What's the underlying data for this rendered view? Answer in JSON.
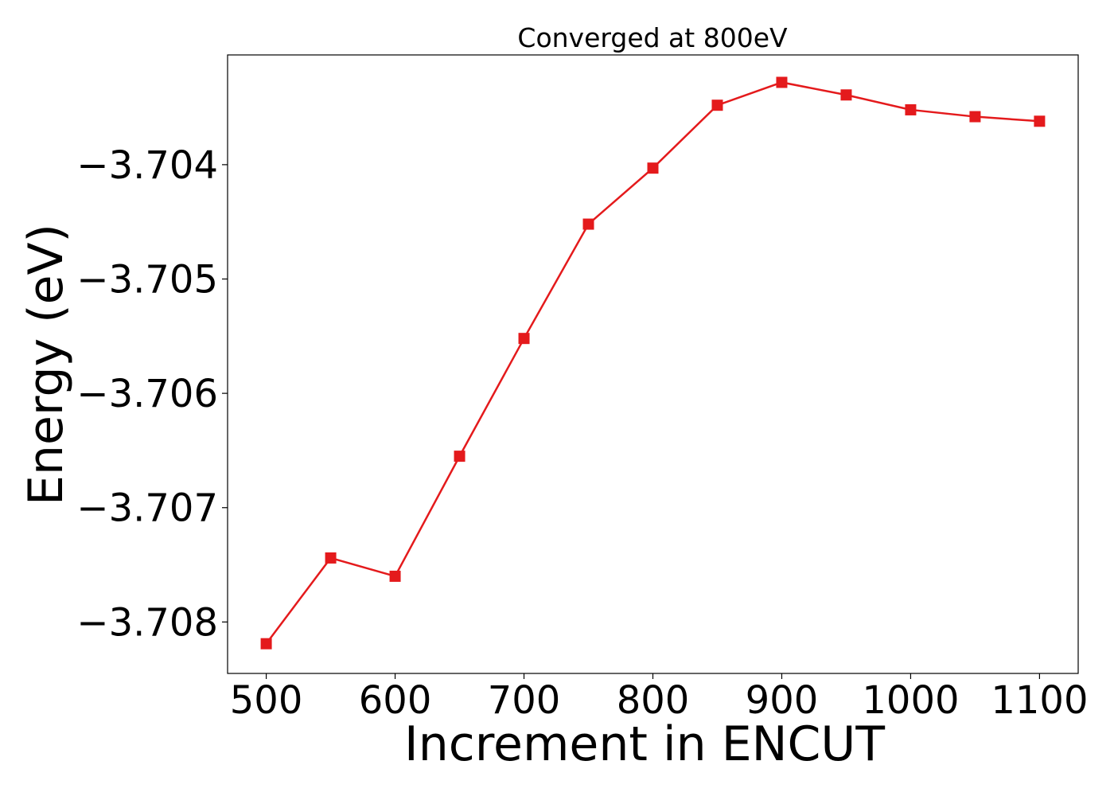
{
  "chart_data": {
    "type": "line",
    "title": "Converged at 800eV",
    "xlabel": "Increment in ENCUT",
    "ylabel": "Energy (eV)",
    "x": [
      500,
      550,
      600,
      650,
      700,
      750,
      800,
      850,
      900,
      950,
      1000,
      1050,
      1100
    ],
    "series": [
      {
        "values": [
          -3.70819,
          -3.70744,
          -3.7076,
          -3.70655,
          -3.70552,
          -3.70452,
          -3.70403,
          -3.70348,
          -3.70328,
          -3.70339,
          -3.70352,
          -3.70358,
          -3.70362
        ],
        "color": "#e41a1c",
        "marker": "square"
      }
    ],
    "xticks": [
      500,
      600,
      700,
      800,
      900,
      1000,
      1100
    ],
    "xtick_labels": [
      "500",
      "600",
      "700",
      "800",
      "900",
      "1000",
      "1100"
    ],
    "yticks": [
      -3.704,
      -3.705,
      -3.706,
      -3.707,
      -3.708
    ],
    "ytick_labels": [
      "−3.704",
      "−3.705",
      "−3.706",
      "−3.707",
      "−3.708"
    ],
    "xlim": [
      470,
      1130
    ],
    "ylim": [
      -3.70845,
      -3.70304
    ],
    "grid": false,
    "legend": false
  }
}
